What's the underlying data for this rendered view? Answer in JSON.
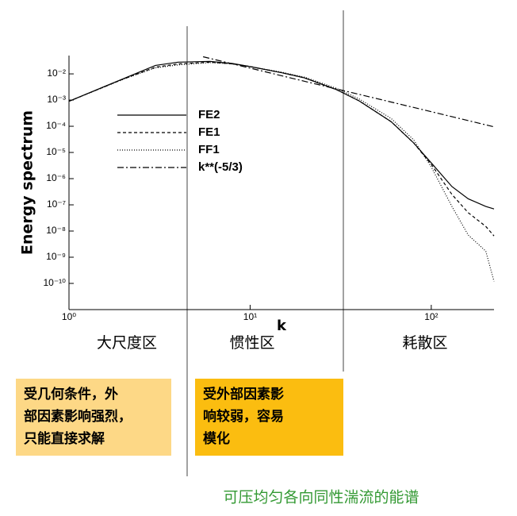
{
  "chart_data": {
    "type": "line",
    "ylabel": "Energy spectrum",
    "xlabel": "k",
    "xscale": "log",
    "yscale": "log",
    "xlim": [
      1,
      222
    ],
    "ylim": [
      1e-11,
      0.05
    ],
    "xticks": [
      {
        "value": 1,
        "label": "10⁰"
      },
      {
        "value": 10,
        "label": "10¹"
      },
      {
        "value": 100,
        "label": "10²"
      }
    ],
    "yticks": [
      {
        "value": 0.01,
        "label": "10⁻²"
      },
      {
        "value": 0.001,
        "label": "10⁻³"
      },
      {
        "value": 0.0001,
        "label": "10⁻⁴"
      },
      {
        "value": 1e-05,
        "label": "10⁻⁵"
      },
      {
        "value": 1e-06,
        "label": "10⁻⁶"
      },
      {
        "value": 1e-07,
        "label": "10⁻⁷"
      },
      {
        "value": 1e-08,
        "label": "10⁻⁸"
      },
      {
        "value": 1e-09,
        "label": "10⁻⁹"
      },
      {
        "value": 1e-10,
        "label": "10⁻¹⁰"
      }
    ],
    "series": [
      {
        "name": "FE2",
        "color": "#000000",
        "dash": "solid",
        "x": [
          1,
          2,
          3,
          4,
          6,
          8,
          10,
          15,
          20,
          30,
          40,
          60,
          80,
          100,
          130,
          160,
          200,
          222
        ],
        "values": [
          0.0009,
          0.0066,
          0.021,
          0.028,
          0.03,
          0.025,
          0.019,
          0.011,
          0.007,
          0.0025,
          0.00093,
          0.00015,
          2.3e-05,
          4e-06,
          5e-07,
          1.7e-07,
          8.7e-08,
          7e-08
        ]
      },
      {
        "name": "FE1",
        "color": "#000000",
        "dash": "dashed",
        "x": [
          1,
          2,
          3,
          4,
          6,
          8,
          10,
          15,
          20,
          30,
          40,
          60,
          80,
          100,
          130,
          160,
          200,
          222
        ],
        "values": [
          0.0009,
          0.0064,
          0.018,
          0.024,
          0.028,
          0.024,
          0.019,
          0.011,
          0.007,
          0.0025,
          0.00093,
          0.00015,
          2.3e-05,
          3.5e-06,
          2.5e-07,
          5e-08,
          1.5e-08,
          6.5e-09
        ]
      },
      {
        "name": "FF1",
        "color": "#000000",
        "dash": "dotted",
        "x": [
          1,
          2,
          3,
          4,
          6,
          8,
          10,
          15,
          20,
          30,
          40,
          60,
          80,
          100,
          130,
          160,
          200,
          222
        ],
        "values": [
          0.0009,
          0.0063,
          0.017,
          0.022,
          0.027,
          0.024,
          0.019,
          0.0115,
          0.0075,
          0.0028,
          0.0011,
          0.0002,
          3e-05,
          2.8e-06,
          8.7e-08,
          7e-09,
          1.7e-09,
          1.2e-10
        ]
      },
      {
        "name": "k**(-5/3)",
        "color": "#000000",
        "dash": "dashdot",
        "x": [
          5.5,
          10,
          20,
          50,
          100,
          222
        ],
        "values": [
          0.045,
          0.0166,
          0.0052,
          0.00114,
          0.00036,
          9.5e-05
        ]
      }
    ],
    "region_labels": [
      "大尺度区",
      "惯性区",
      "耗散区"
    ],
    "notes": [
      "受几何条件，外",
      "部因素影响强烈，",
      "只能直接求解"
    ],
    "notes2": [
      "受外部因素影",
      "响较弱，容易",
      "模化"
    ],
    "caption": "可压均匀各向同性湍流的能谱"
  }
}
